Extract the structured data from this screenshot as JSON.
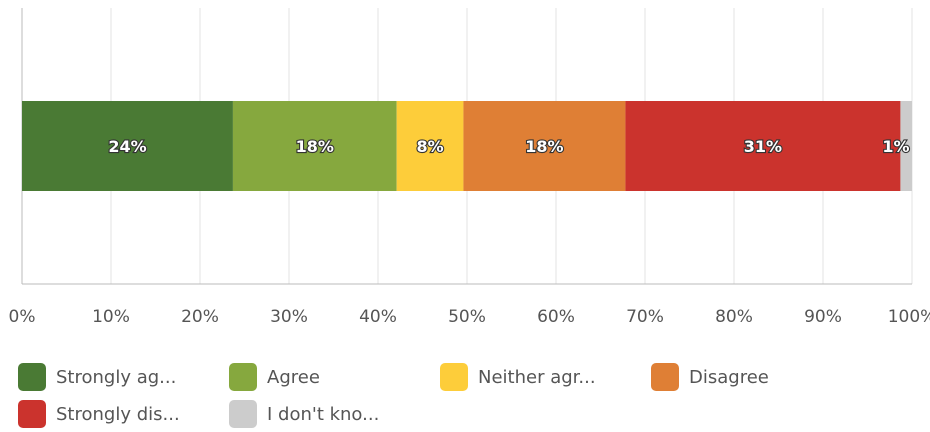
{
  "chart_data": {
    "type": "bar",
    "orientation": "horizontal",
    "stacked": true,
    "title": "",
    "xlabel": "",
    "ylabel": "",
    "xlim": [
      0,
      100
    ],
    "x_ticks": [
      0,
      10,
      20,
      30,
      40,
      50,
      60,
      70,
      80,
      90,
      100
    ],
    "x_tick_labels": [
      "0%",
      "10%",
      "20%",
      "30%",
      "40%",
      "50%",
      "60%",
      "70%",
      "80%",
      "90%",
      "100%"
    ],
    "grid": true,
    "legend_position": "bottom",
    "series": [
      {
        "name": "Strongly ag...",
        "value": 23.7,
        "label": "24%",
        "color": "#4a7a34"
      },
      {
        "name": "Agree",
        "value": 18.4,
        "label": "18%",
        "color": "#86a83e"
      },
      {
        "name": "Neither agr...",
        "value": 7.5,
        "label": "8%",
        "color": "#fdcd3a"
      },
      {
        "name": "Disagree",
        "value": 18.2,
        "label": "18%",
        "color": "#df7f35"
      },
      {
        "name": "Strongly dis...",
        "value": 30.9,
        "label": "31%",
        "color": "#cb332d"
      },
      {
        "name": "I don't kno...",
        "value": 1.3,
        "label": "1%",
        "color": "#cccccc"
      }
    ]
  }
}
